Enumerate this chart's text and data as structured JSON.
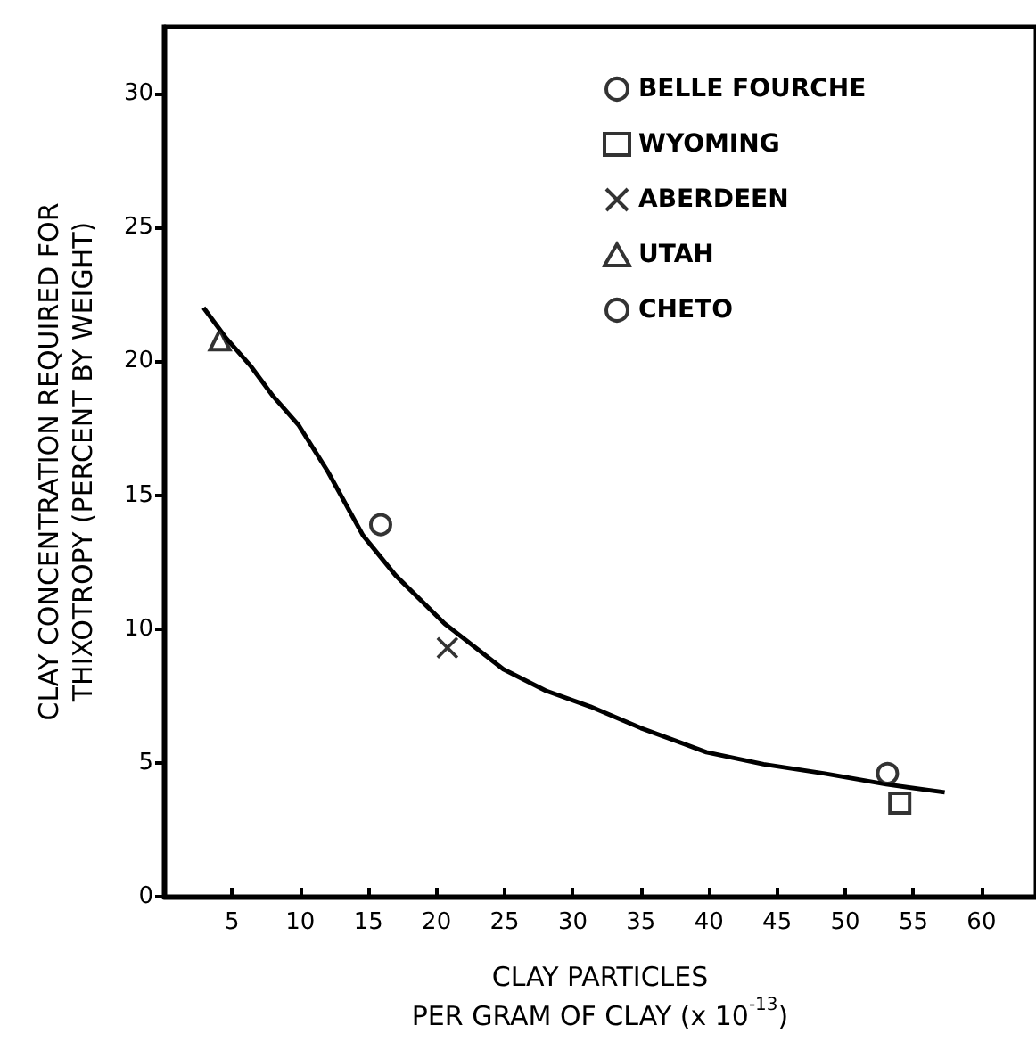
{
  "chart_data": {
    "type": "scatter",
    "xlabel": "CLAY PARTICLES\nPER GRAM OF CLAY (x 10$^{-13}$)",
    "ylabel": "CLAY CONCENTRATION REQUIRED FOR\nTHIXOTROPY (PERCENT BY WEIGHT)",
    "xlim": [
      0,
      64
    ],
    "xticks": [
      5,
      10,
      15,
      20,
      25,
      30,
      35,
      40,
      45,
      50,
      55,
      60
    ],
    "ylim": [
      0,
      32.5
    ],
    "yticks": [
      0,
      5,
      10,
      15,
      20,
      25,
      30
    ],
    "grid": false,
    "legend": "top right",
    "series": [
      {
        "name": "BELLE FOURCHE",
        "marker": "circle",
        "color": "#000000",
        "x": [
          53.1
        ],
        "values": [
          4.6
        ]
      },
      {
        "name": "WYOMING",
        "marker": "square",
        "color": "#000000",
        "x": [
          54.0
        ],
        "values": [
          3.5
        ]
      },
      {
        "name": "ABERDEEN",
        "marker": "cross",
        "color": "#000000",
        "x": [
          20.8
        ],
        "values": [
          9.3
        ]
      },
      {
        "name": "UTAH",
        "marker": "triangle",
        "color": "#000000",
        "x": [
          4.1
        ],
        "values": [
          20.8
        ]
      },
      {
        "name": "CHETO",
        "marker": "circle",
        "color": "#000000",
        "x": [
          15.9
        ],
        "values": [
          13.9
        ]
      },
      {
        "type": "line",
        "marker": "none",
        "color": "#000000",
        "x": [
          2.9,
          4.5,
          6.4,
          8,
          9.9,
          12,
          14.6,
          17,
          20.6,
          24.9,
          28,
          31.3,
          35,
          39.8,
          44,
          48.5,
          53,
          57.3
        ],
        "values": [
          22.0,
          20.9,
          19.8,
          18.7,
          17.6,
          15.9,
          13.5,
          12.0,
          10.2,
          8.5,
          7.7,
          7.1,
          6.3,
          5.4,
          4.95,
          4.6,
          4.2,
          3.9
        ]
      }
    ]
  }
}
